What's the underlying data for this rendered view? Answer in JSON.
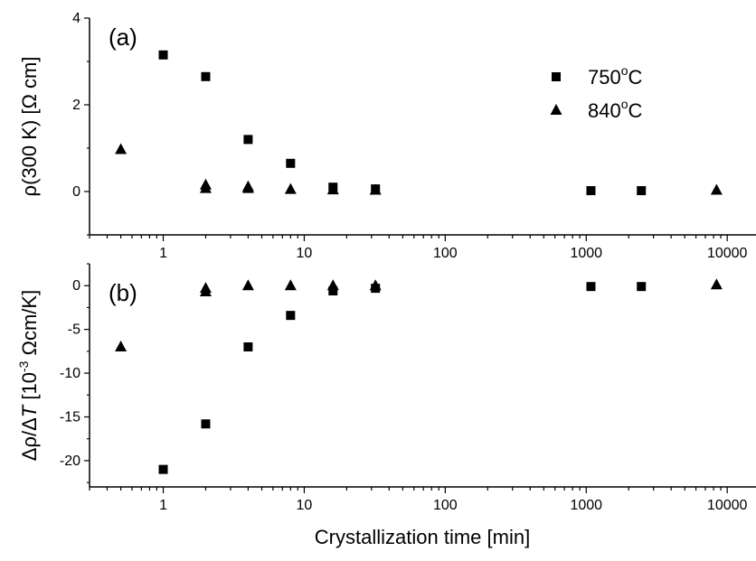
{
  "figure": {
    "xlabel": "Crystallization time [min]"
  },
  "chart_data": [
    {
      "type": "scatter",
      "panel_label": "(a)",
      "ylabel": "ρ(300 K) [Ω cm]",
      "xscale": "log",
      "xlim": [
        0.3,
        16000
      ],
      "ylim": [
        -1.0,
        4.0
      ],
      "yticks": [
        0,
        2,
        4
      ],
      "xticks": [
        1,
        10,
        100,
        1000,
        10000
      ],
      "xtick_labels": [
        "1",
        "10",
        "100",
        "1000",
        "10000"
      ],
      "show_x_tick_labels": true,
      "legend": {
        "placement": "top-right",
        "visible": true
      },
      "series": [
        {
          "name": "750°C",
          "legend_text": "750",
          "legend_sup": "o",
          "legend_suffix": "C",
          "marker": "square",
          "color": "#000000",
          "points": [
            {
              "x": 1,
              "y": 3.15
            },
            {
              "x": 2,
              "y": 2.65
            },
            {
              "x": 4,
              "y": 1.2
            },
            {
              "x": 8,
              "y": 0.65
            },
            {
              "x": 16,
              "y": 0.1
            },
            {
              "x": 32,
              "y": 0.06
            },
            {
              "x": 1080,
              "y": 0.02
            },
            {
              "x": 2460,
              "y": 0.02
            }
          ]
        },
        {
          "name": "840°C",
          "legend_text": "840",
          "legend_sup": "o",
          "legend_suffix": "C",
          "marker": "triangle",
          "color": "#000000",
          "points": [
            {
              "x": 0.5,
              "y": 0.97
            },
            {
              "x": 2,
              "y": 0.15
            },
            {
              "x": 2,
              "y": 0.07
            },
            {
              "x": 4,
              "y": 0.11
            },
            {
              "x": 4,
              "y": 0.07
            },
            {
              "x": 8,
              "y": 0.05
            },
            {
              "x": 16,
              "y": 0.04
            },
            {
              "x": 32,
              "y": 0.03
            },
            {
              "x": 8400,
              "y": 0.03
            }
          ]
        }
      ]
    },
    {
      "type": "scatter",
      "panel_label": "(b)",
      "ylabel": "Δρ/ΔT [10⁻³ Ωcm/K]",
      "ylabel_parts": [
        "Δρ/Δ",
        "T",
        " [10",
        "-3",
        " Ωcm/K]"
      ],
      "xscale": "log",
      "xlim": [
        0.3,
        16000
      ],
      "ylim": [
        -23.0,
        2.5
      ],
      "yticks": [
        -20,
        -15,
        -10,
        -5,
        0
      ],
      "xticks": [
        1,
        10,
        100,
        1000,
        10000
      ],
      "xtick_labels": [
        "1",
        "10",
        "100",
        "1000",
        "10000"
      ],
      "show_x_tick_labels": true,
      "legend": {
        "visible": false
      },
      "series": [
        {
          "name": "750°C",
          "marker": "square",
          "color": "#000000",
          "points": [
            {
              "x": 1,
              "y": -21.0
            },
            {
              "x": 2,
              "y": -15.8
            },
            {
              "x": 4,
              "y": -7.0
            },
            {
              "x": 8,
              "y": -3.4
            },
            {
              "x": 16,
              "y": -0.6
            },
            {
              "x": 32,
              "y": -0.3
            },
            {
              "x": 1080,
              "y": -0.1
            },
            {
              "x": 2460,
              "y": -0.1
            }
          ]
        },
        {
          "name": "840°C",
          "marker": "triangle",
          "color": "#000000",
          "points": [
            {
              "x": 0.5,
              "y": -7.0
            },
            {
              "x": 2,
              "y": -0.3
            },
            {
              "x": 2,
              "y": -0.7
            },
            {
              "x": 4,
              "y": 0.0
            },
            {
              "x": 8,
              "y": 0.0
            },
            {
              "x": 16,
              "y": 0.0
            },
            {
              "x": 32,
              "y": 0.0
            },
            {
              "x": 8400,
              "y": 0.1
            }
          ]
        }
      ]
    }
  ]
}
